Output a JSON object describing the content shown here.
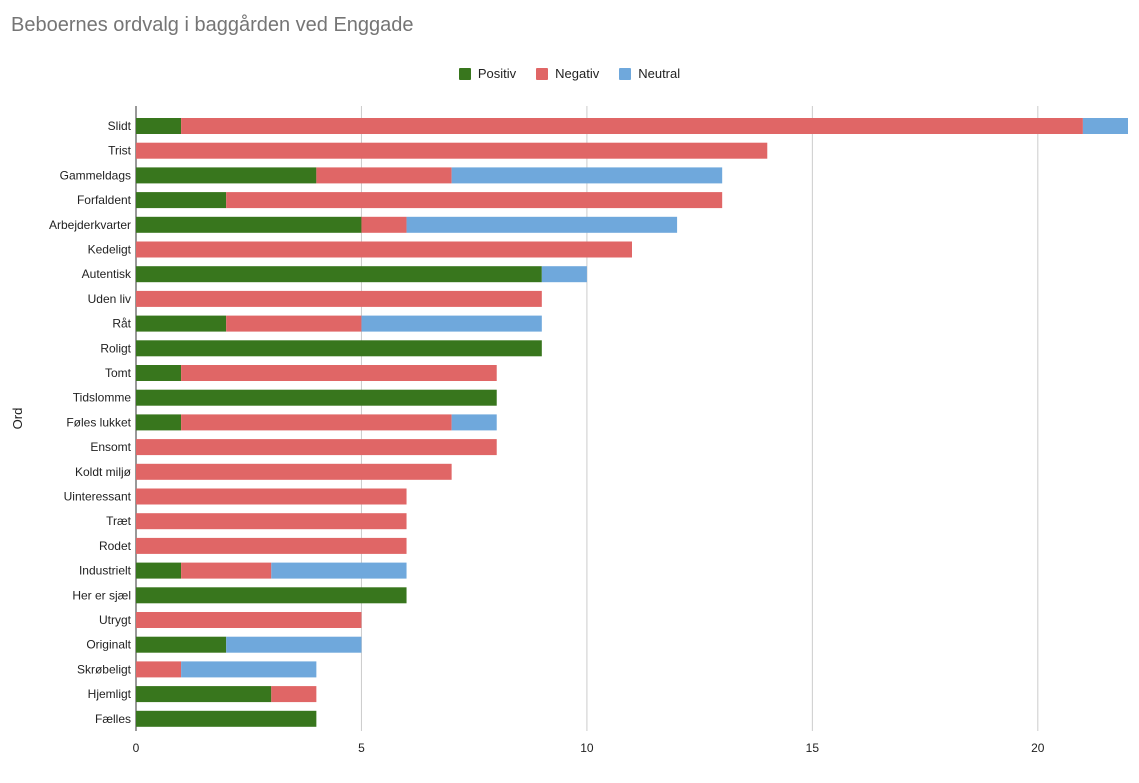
{
  "chart_data": {
    "type": "bar",
    "orientation": "horizontal",
    "stacked": true,
    "title": "Beboernes ordvalg i baggården ved Enggade",
    "ylabel": "Ord",
    "xlabel": "",
    "xlim": [
      0,
      22
    ],
    "x_ticks": [
      0,
      5,
      10,
      15,
      20
    ],
    "grid": true,
    "legend_position": "top",
    "categories": [
      "Slidt",
      "Trist",
      "Gammeldags",
      "Forfaldent",
      "Arbejderkvarter",
      "Kedeligt",
      "Autentisk",
      "Uden liv",
      "Råt",
      "Roligt",
      "Tomt",
      "Tidslomme",
      "Føles lukket",
      "Ensomt",
      "Koldt miljø",
      "Uinteressant",
      "Træt",
      "Rodet",
      "Industrielt",
      "Her er sjæl",
      "Utrygt",
      "Originalt",
      "Skrøbeligt",
      "Hjemligt",
      "Fælles"
    ],
    "series": [
      {
        "name": "Positiv",
        "color": "#38761d",
        "values": [
          1,
          0,
          4,
          2,
          5,
          0,
          9,
          0,
          2,
          9,
          1,
          8,
          1,
          0,
          0,
          0,
          0,
          0,
          1,
          6,
          0,
          2,
          0,
          3,
          4
        ]
      },
      {
        "name": "Negativ",
        "color": "#e06666",
        "values": [
          20,
          14,
          3,
          11,
          1,
          11,
          0,
          9,
          3,
          0,
          7,
          0,
          6,
          8,
          7,
          6,
          6,
          6,
          2,
          0,
          5,
          0,
          1,
          1,
          0
        ]
      },
      {
        "name": "Neutral",
        "color": "#6fa8dc",
        "values": [
          1,
          0,
          6,
          0,
          6,
          0,
          1,
          0,
          4,
          0,
          0,
          0,
          1,
          0,
          0,
          0,
          0,
          0,
          3,
          0,
          0,
          3,
          3,
          0,
          0
        ]
      }
    ]
  }
}
